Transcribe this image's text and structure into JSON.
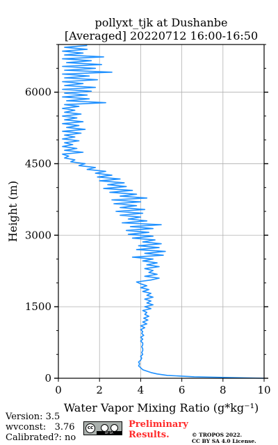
{
  "title": {
    "line1": "pollyxt_tjk at Dushanbe",
    "line2": "[Averaged] 20220712 16:00-16:50"
  },
  "footer": {
    "version": "Version: 3.5",
    "wvconst": "wvconst:   3.76",
    "calibrated": "Calibrated?: no",
    "preliminary_1": "Preliminary",
    "preliminary_2": "Results.",
    "license_1": "© TROPOS 2022.",
    "license_2": "CC BY SA 4.0 License.",
    "cc_badge": {
      "cc": "cc",
      "by": "BY",
      "sa": "SA"
    }
  },
  "colors": {
    "series": "#1e90ff",
    "grid": "#b0b0b0",
    "preliminary": "#ff2a2a"
  },
  "chart_data": {
    "type": "line",
    "xlabel": "Water Vapor Mixing Ratio ($g*kg^{-1}$)",
    "xlabel_display": "Water Vapor Mixing Ratio (g*kg⁻¹)",
    "ylabel": "Height (m)",
    "xlim": [
      0,
      10
    ],
    "ylim": [
      0,
      7000
    ],
    "xticks": [
      0,
      2,
      4,
      6,
      8,
      10
    ],
    "xtick_labels": [
      "0",
      "2",
      "4",
      "6",
      "8",
      "10"
    ],
    "yticks": [
      0,
      1500,
      3000,
      4500,
      6000
    ],
    "ytick_labels": [
      "0",
      "1500",
      "3000",
      "4500",
      "6000"
    ],
    "grid": true,
    "series": [
      {
        "profile": [
          [
            10.0,
            0
          ],
          [
            6.6,
            30
          ],
          [
            5.3,
            60
          ],
          [
            4.8,
            90
          ],
          [
            4.5,
            120
          ],
          [
            4.3,
            150
          ],
          [
            4.1,
            180
          ],
          [
            4.0,
            220
          ],
          [
            3.9,
            260
          ],
          [
            3.95,
            300
          ],
          [
            3.9,
            340
          ],
          [
            4.0,
            380
          ],
          [
            4.05,
            420
          ],
          [
            4.0,
            460
          ],
          [
            4.1,
            500
          ],
          [
            4.05,
            540
          ],
          [
            4.1,
            580
          ],
          [
            4.1,
            620
          ],
          [
            4.05,
            660
          ],
          [
            4.1,
            700
          ],
          [
            4.1,
            740
          ],
          [
            4.0,
            780
          ],
          [
            4.1,
            820
          ],
          [
            4.0,
            860
          ],
          [
            4.15,
            900
          ],
          [
            4.05,
            940
          ],
          [
            4.1,
            980
          ],
          [
            4.0,
            1020
          ],
          [
            4.2,
            1060
          ],
          [
            4.0,
            1100
          ],
          [
            4.3,
            1140
          ],
          [
            4.1,
            1180
          ],
          [
            4.35,
            1220
          ],
          [
            4.15,
            1260
          ],
          [
            4.4,
            1300
          ],
          [
            4.2,
            1340
          ],
          [
            4.3,
            1380
          ],
          [
            4.1,
            1420
          ],
          [
            4.5,
            1460
          ],
          [
            4.2,
            1500
          ],
          [
            4.6,
            1540
          ],
          [
            4.3,
            1580
          ],
          [
            4.5,
            1620
          ],
          [
            4.2,
            1660
          ],
          [
            4.6,
            1700
          ],
          [
            4.3,
            1740
          ],
          [
            4.5,
            1780
          ],
          [
            4.1,
            1820
          ],
          [
            4.4,
            1860
          ],
          [
            4.0,
            1900
          ],
          [
            4.3,
            1940
          ],
          [
            4.0,
            1980
          ],
          [
            3.8,
            2020
          ],
          [
            4.5,
            2060
          ],
          [
            4.9,
            2100
          ],
          [
            4.2,
            2140
          ],
          [
            4.8,
            2180
          ],
          [
            4.4,
            2220
          ],
          [
            4.6,
            2260
          ],
          [
            4.2,
            2300
          ],
          [
            4.9,
            2340
          ],
          [
            4.3,
            2380
          ],
          [
            4.8,
            2420
          ],
          [
            4.1,
            2460
          ],
          [
            4.6,
            2500
          ],
          [
            3.6,
            2540
          ],
          [
            5.1,
            2580
          ],
          [
            4.2,
            2620
          ],
          [
            5.2,
            2660
          ],
          [
            3.8,
            2700
          ],
          [
            4.9,
            2740
          ],
          [
            3.9,
            2780
          ],
          [
            5.0,
            2820
          ],
          [
            4.1,
            2860
          ],
          [
            4.7,
            2900
          ],
          [
            3.6,
            2940
          ],
          [
            4.6,
            2980
          ],
          [
            3.4,
            3020
          ],
          [
            4.4,
            3060
          ],
          [
            3.3,
            3100
          ],
          [
            4.6,
            3140
          ],
          [
            3.5,
            3180
          ],
          [
            5.0,
            3220
          ],
          [
            3.1,
            3260
          ],
          [
            4.3,
            3300
          ],
          [
            3.4,
            3340
          ],
          [
            4.0,
            3380
          ],
          [
            3.0,
            3420
          ],
          [
            4.1,
            3460
          ],
          [
            2.8,
            3500
          ],
          [
            4.2,
            3540
          ],
          [
            3.0,
            3580
          ],
          [
            3.8,
            3620
          ],
          [
            2.7,
            3660
          ],
          [
            4.0,
            3700
          ],
          [
            2.6,
            3740
          ],
          [
            4.3,
            3780
          ],
          [
            3.0,
            3820
          ],
          [
            3.8,
            3860
          ],
          [
            2.5,
            3900
          ],
          [
            3.6,
            3940
          ],
          [
            2.2,
            3980
          ],
          [
            3.3,
            4020
          ],
          [
            2.4,
            4060
          ],
          [
            3.2,
            4100
          ],
          [
            2.0,
            4140
          ],
          [
            3.0,
            4180
          ],
          [
            1.9,
            4220
          ],
          [
            2.6,
            4260
          ],
          [
            1.8,
            4300
          ],
          [
            2.3,
            4340
          ],
          [
            1.4,
            4380
          ],
          [
            1.8,
            4420
          ],
          [
            1.0,
            4460
          ],
          [
            1.3,
            4500
          ],
          [
            0.6,
            4540
          ],
          [
            0.8,
            4580
          ],
          [
            0.3,
            4620
          ],
          [
            0.5,
            4660
          ],
          [
            0.2,
            4700
          ],
          [
            1.2,
            4740
          ],
          [
            0.3,
            4780
          ],
          [
            0.9,
            4820
          ],
          [
            0.2,
            4860
          ],
          [
            0.7,
            4900
          ],
          [
            0.3,
            4940
          ],
          [
            1.0,
            4980
          ],
          [
            0.2,
            5020
          ],
          [
            0.8,
            5060
          ],
          [
            0.3,
            5100
          ],
          [
            1.1,
            5140
          ],
          [
            0.2,
            5180
          ],
          [
            1.3,
            5220
          ],
          [
            0.4,
            5260
          ],
          [
            1.0,
            5300
          ],
          [
            0.2,
            5340
          ],
          [
            1.2,
            5380
          ],
          [
            0.3,
            5420
          ],
          [
            0.9,
            5460
          ],
          [
            0.2,
            5500
          ],
          [
            1.1,
            5540
          ],
          [
            0.3,
            5580
          ],
          [
            0.8,
            5620
          ],
          [
            0.2,
            5660
          ],
          [
            1.0,
            5700
          ],
          [
            0.3,
            5740
          ],
          [
            2.3,
            5780
          ],
          [
            0.4,
            5820
          ],
          [
            1.5,
            5860
          ],
          [
            0.2,
            5900
          ],
          [
            1.4,
            5940
          ],
          [
            0.3,
            5980
          ],
          [
            1.6,
            6020
          ],
          [
            0.2,
            6060
          ],
          [
            1.8,
            6100
          ],
          [
            0.3,
            6140
          ],
          [
            1.2,
            6180
          ],
          [
            0.2,
            6220
          ],
          [
            1.9,
            6260
          ],
          [
            0.3,
            6300
          ],
          [
            1.5,
            6340
          ],
          [
            0.2,
            6380
          ],
          [
            2.6,
            6420
          ],
          [
            0.3,
            6460
          ],
          [
            1.8,
            6500
          ],
          [
            0.2,
            6540
          ],
          [
            2.1,
            6580
          ],
          [
            0.4,
            6620
          ],
          [
            1.6,
            6660
          ],
          [
            0.2,
            6700
          ],
          [
            2.2,
            6740
          ],
          [
            0.3,
            6780
          ],
          [
            1.2,
            6820
          ],
          [
            0.2,
            6860
          ],
          [
            1.4,
            6900
          ],
          [
            0.3,
            6940
          ],
          [
            1.4,
            6980
          ]
        ]
      }
    ]
  }
}
